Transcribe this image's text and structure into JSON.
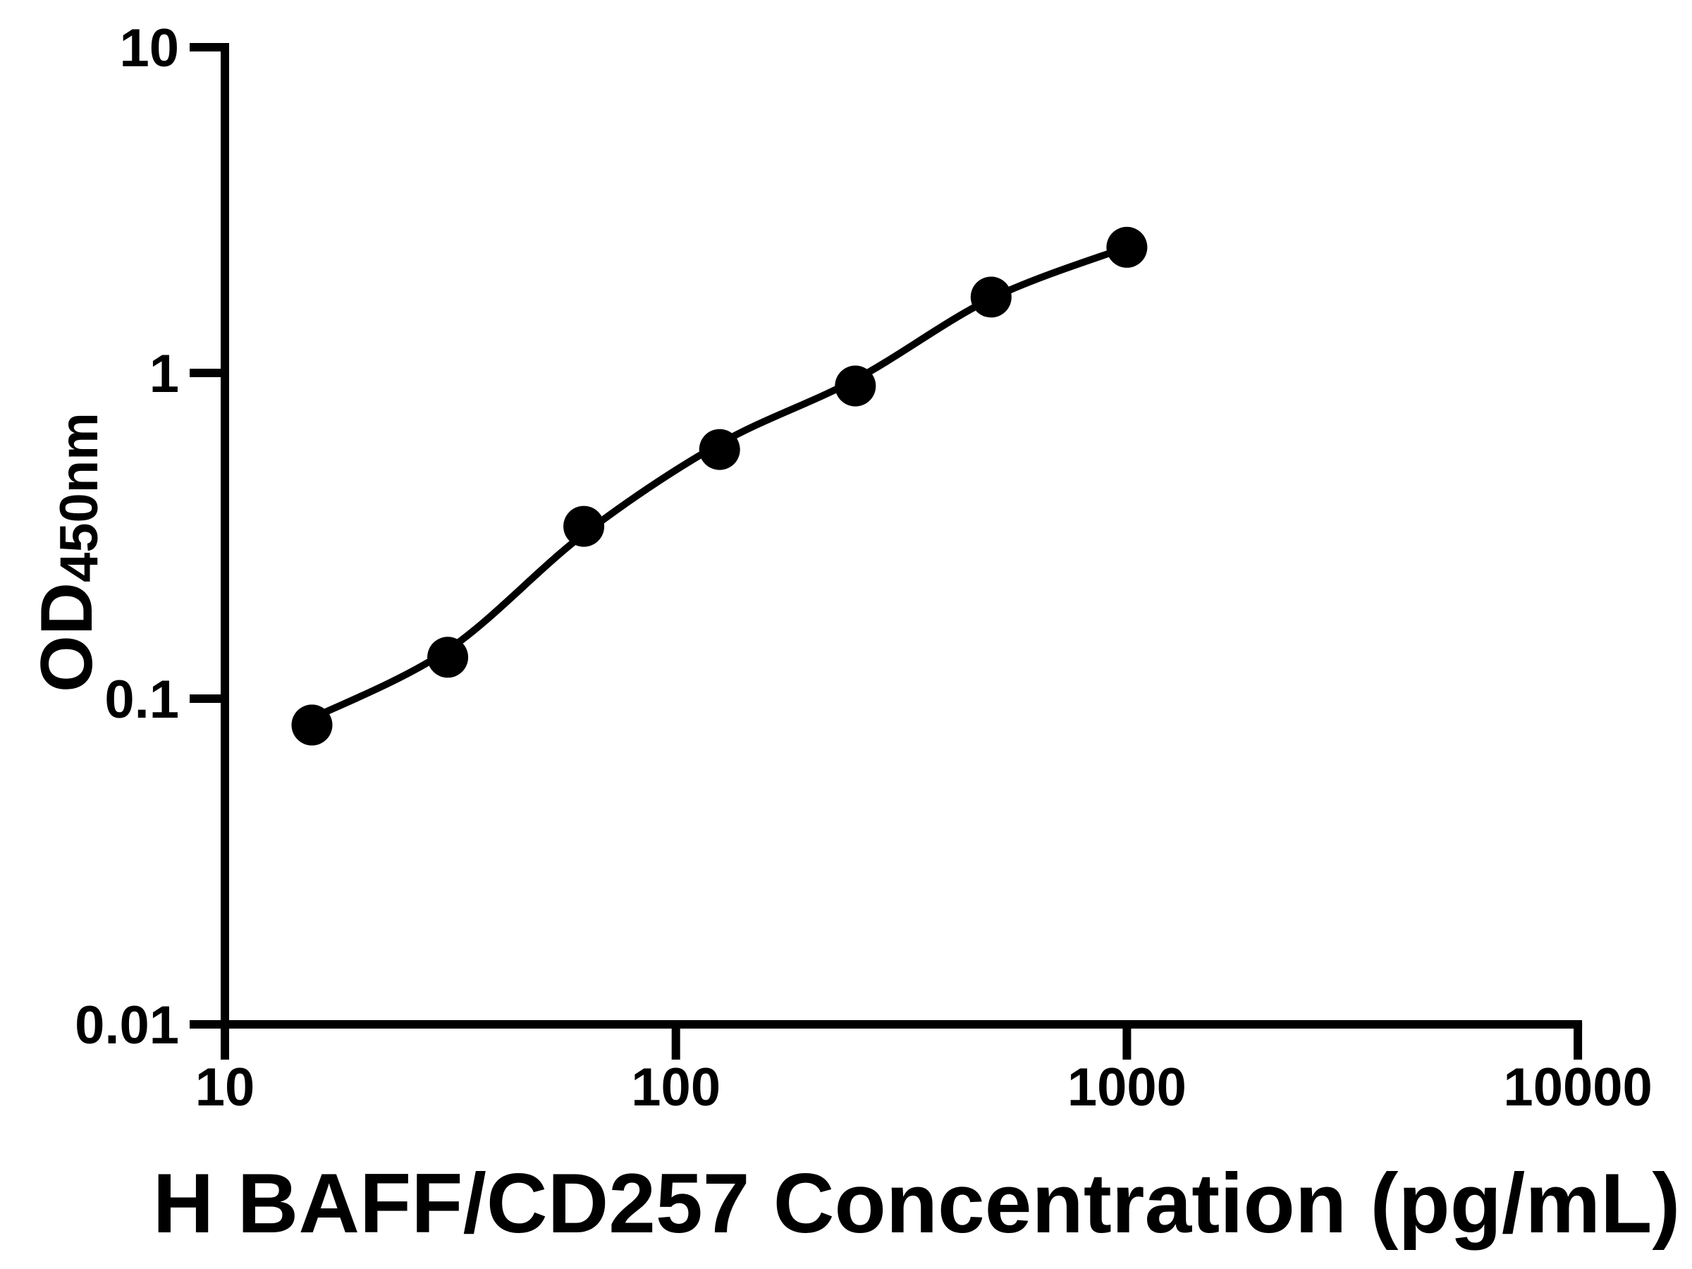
{
  "chart_data": {
    "type": "scatter",
    "title": "",
    "xlabel": "H BAFF/CD257 Concentration (pg/mL)",
    "ylabel_main": "OD",
    "ylabel_sub": "450nm",
    "x_scale": "log",
    "y_scale": "log",
    "xlim": [
      10,
      10000
    ],
    "ylim": [
      0.01,
      10
    ],
    "x_ticks": [
      10,
      100,
      1000,
      10000
    ],
    "x_tick_labels": [
      "10",
      "100",
      "1000",
      "10000"
    ],
    "y_ticks": [
      10,
      1,
      0.1,
      0.01
    ],
    "y_tick_labels": [
      "10",
      "1",
      "0.1",
      "0.01"
    ],
    "grid": "off",
    "legend": "none",
    "series": [
      {
        "name": "standard-points",
        "marker": "filled-circle",
        "x": [
          15.6,
          31.2,
          62.5,
          125,
          250,
          500,
          1000
        ],
        "y": [
          0.083,
          0.134,
          0.338,
          0.582,
          0.912,
          1.71,
          2.43
        ]
      }
    ],
    "fit_curve": {
      "name": "4PL-fit-line",
      "x": [
        15.6,
        31.2,
        62.5,
        125,
        250,
        500,
        1000
      ],
      "y": [
        0.087,
        0.141,
        0.32,
        0.606,
        0.954,
        1.692,
        2.434
      ]
    },
    "colors": {
      "marker": "#000000",
      "line": "#000000",
      "axis": "#000000",
      "background": "#ffffff"
    }
  }
}
